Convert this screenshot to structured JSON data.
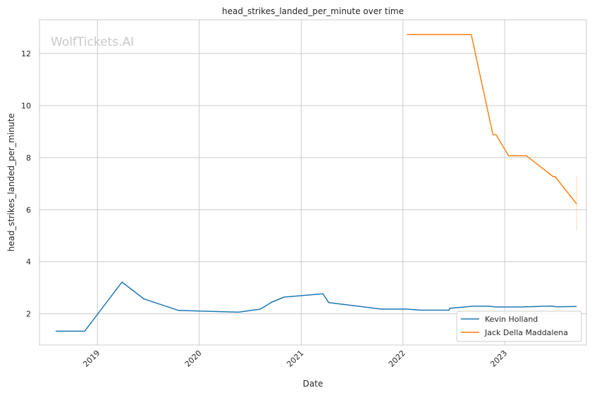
{
  "watermark": "WolfTickets.AI",
  "chart_data": {
    "type": "line",
    "title": "head_strikes_landed_per_minute over time",
    "xlabel": "Date",
    "ylabel": "head_strikes_landed_per_minute",
    "x_type": "date",
    "xlim": [
      "2018-06-07",
      "2023-10-21"
    ],
    "ylim": [
      0.8,
      13.3
    ],
    "x_ticks": [
      "2019-01-01",
      "2020-01-01",
      "2021-01-01",
      "2022-01-01",
      "2023-01-01"
    ],
    "x_tick_labels": [
      "2019",
      "2020",
      "2021",
      "2022",
      "2023"
    ],
    "y_ticks": [
      2,
      4,
      6,
      8,
      10,
      12
    ],
    "y_tick_labels": [
      "2",
      "4",
      "6",
      "8",
      "10",
      "12"
    ],
    "grid": true,
    "legend_position": "bottom-right",
    "series": [
      {
        "name": "Kevin Holland",
        "color": "#1f77b4",
        "x": [
          "2018-08-04",
          "2018-11-16",
          "2019-03-30",
          "2019-06-17",
          "2019-10-18",
          "2020-05-21",
          "2020-08-08",
          "2020-09-18",
          "2020-10-31",
          "2021-03-20",
          "2021-04-10",
          "2021-10-15",
          "2022-01-15",
          "2022-03-05",
          "2022-06-15",
          "2022-06-18",
          "2022-09-10",
          "2022-11-05",
          "2022-12-01",
          "2023-03-01",
          "2023-06-15",
          "2023-07-08",
          "2023-09-16"
        ],
        "y": [
          1.33,
          1.33,
          3.22,
          2.57,
          2.13,
          2.06,
          2.18,
          2.45,
          2.64,
          2.77,
          2.43,
          2.18,
          2.18,
          2.14,
          2.14,
          2.21,
          2.29,
          2.29,
          2.26,
          2.26,
          2.3,
          2.27,
          2.28
        ]
      },
      {
        "name": "Jack Della Maddalena",
        "color": "#ff7f0e",
        "x": [
          "2022-01-15",
          "2022-09-03",
          "2022-11-20",
          "2022-12-01",
          "2023-01-15",
          "2023-03-20",
          "2023-06-24",
          "2023-07-01",
          "2023-09-16"
        ],
        "y": [
          12.73,
          12.73,
          8.88,
          8.88,
          8.07,
          8.07,
          7.27,
          7.27,
          6.22
        ],
        "error_band": {
          "x": "2023-09-16",
          "low": 5.2,
          "high": 7.3
        }
      }
    ]
  }
}
